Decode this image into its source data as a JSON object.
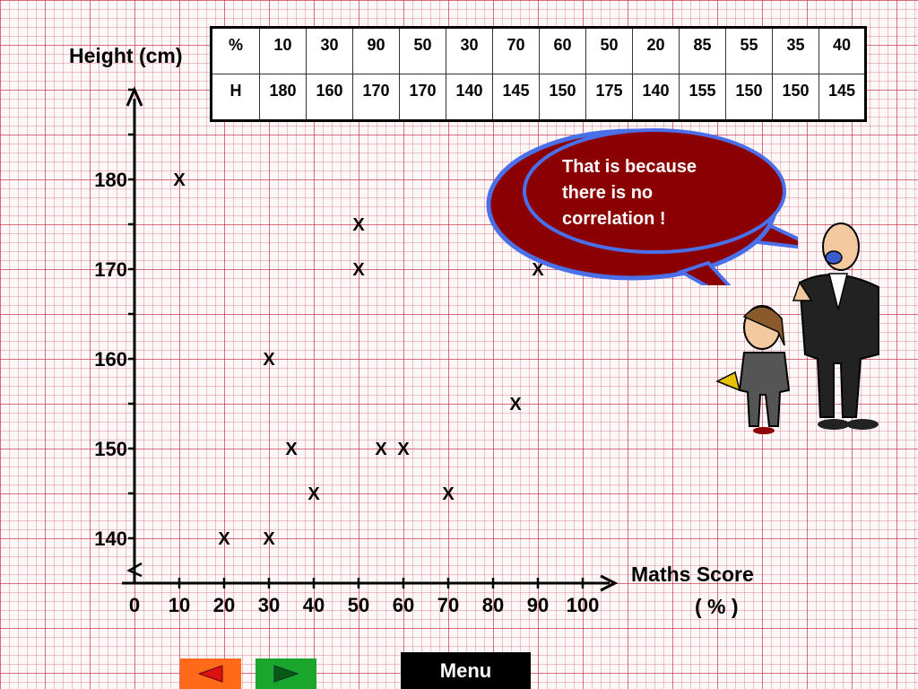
{
  "chart_data": {
    "type": "scatter",
    "xlabel": "Maths Score",
    "xlabel_unit": "( % )",
    "ylabel": "Height (cm)",
    "x_ticks": [
      "0",
      "10",
      "20",
      "30",
      "40",
      "50",
      "60",
      "70",
      "80",
      "90",
      "100"
    ],
    "y_ticks": [
      "140",
      "150",
      "160",
      "170",
      "180"
    ],
    "xlim": [
      0,
      100
    ],
    "ylim": [
      140,
      180
    ],
    "marker": "X",
    "points": [
      {
        "x": 10,
        "y": 180
      },
      {
        "x": 30,
        "y": 160
      },
      {
        "x": 90,
        "y": 170
      },
      {
        "x": 50,
        "y": 170
      },
      {
        "x": 30,
        "y": 140
      },
      {
        "x": 70,
        "y": 145
      },
      {
        "x": 60,
        "y": 150
      },
      {
        "x": 50,
        "y": 175
      },
      {
        "x": 20,
        "y": 140
      },
      {
        "x": 85,
        "y": 155
      },
      {
        "x": 55,
        "y": 150
      },
      {
        "x": 35,
        "y": 150
      },
      {
        "x": 40,
        "y": 145
      }
    ]
  },
  "table": {
    "row1_header": "%",
    "row2_header": "H",
    "percent": [
      "10",
      "30",
      "90",
      "50",
      "30",
      "70",
      "60",
      "50",
      "20",
      "85",
      "55",
      "35",
      "40"
    ],
    "height": [
      "180",
      "160",
      "170",
      "170",
      "140",
      "145",
      "150",
      "175",
      "140",
      "155",
      "150",
      "150",
      "145"
    ]
  },
  "speech": {
    "line1": "That is because",
    "line2": "there is no",
    "line3": "correlation !"
  },
  "nav": {
    "menu_label": "Menu",
    "prev_icon": "triangle-left-icon",
    "next_icon": "triangle-right-icon"
  },
  "colors": {
    "grid": "#c8283c",
    "bubble_fill": "#8b0000",
    "bubble_border": "#4a6fe8",
    "prev": "#ff6a1a",
    "next": "#1aa52d"
  }
}
